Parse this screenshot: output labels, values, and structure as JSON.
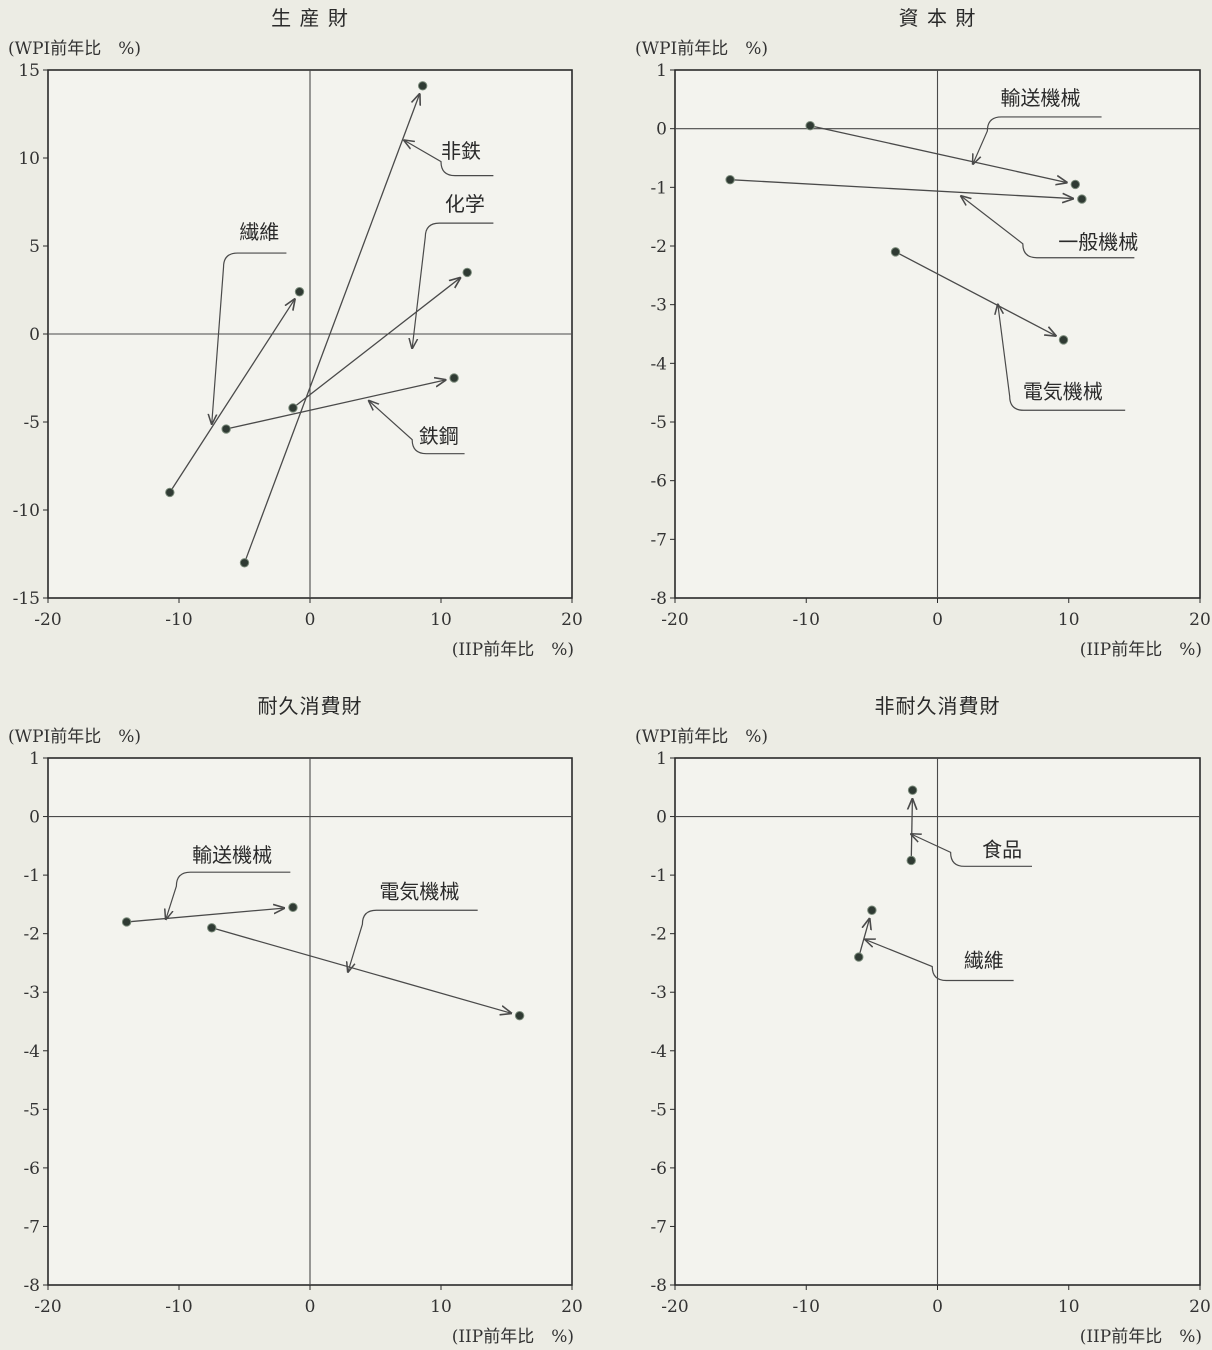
{
  "chart_data": [
    {
      "type": "scatter",
      "title": "生 産 財",
      "ylabel": "(WPI前年比　%)",
      "xlabel": "(IIP前年比　%)",
      "xlim": [
        -20,
        20
      ],
      "ylim": [
        -15,
        15
      ],
      "xticks": [
        "-20",
        "-10",
        "0",
        "10",
        "20"
      ],
      "yticks": [
        "15",
        "10",
        "5",
        "0",
        "-5",
        "-10",
        "-15"
      ],
      "series": [
        {
          "name": "繊維",
          "from": [
            -10.7,
            -9.0
          ],
          "to": [
            -0.8,
            2.4
          ]
        },
        {
          "name": "非鉄",
          "from": [
            -5.0,
            -13.0
          ],
          "to": [
            8.6,
            14.1
          ]
        },
        {
          "name": "化学",
          "from": [
            -1.3,
            -4.2
          ],
          "to": [
            12.0,
            3.5
          ]
        },
        {
          "name": "鉄鋼",
          "from": [
            -6.4,
            -5.4
          ],
          "to": [
            11.0,
            -2.5
          ]
        }
      ]
    },
    {
      "type": "scatter",
      "title": "資 本 財",
      "ylabel": "(WPI前年比　%)",
      "xlabel": "(IIP前年比　%)",
      "xlim": [
        -20,
        20
      ],
      "ylim": [
        -8,
        1
      ],
      "xticks": [
        "-20",
        "-10",
        "0",
        "10",
        "20"
      ],
      "yticks": [
        "1",
        "0",
        "-1",
        "-2",
        "-3",
        "-4",
        "-5",
        "-6",
        "-7",
        "-8"
      ],
      "series": [
        {
          "name": "輸送機械",
          "from": [
            -9.7,
            0.05
          ],
          "to": [
            10.5,
            -0.95
          ]
        },
        {
          "name": "一般機械",
          "from": [
            -15.8,
            -0.87
          ],
          "to": [
            11.0,
            -1.2
          ]
        },
        {
          "name": "電気機械",
          "from": [
            -3.2,
            -2.1
          ],
          "to": [
            9.6,
            -3.6
          ]
        }
      ]
    },
    {
      "type": "scatter",
      "title": "耐久消費財",
      "ylabel": "(WPI前年比　%)",
      "xlabel": "(IIP前年比　%)",
      "xlim": [
        -20,
        20
      ],
      "ylim": [
        -8,
        1
      ],
      "xticks": [
        "-20",
        "-10",
        "0",
        "10",
        "20"
      ],
      "yticks": [
        "1",
        "0",
        "-1",
        "-2",
        "-3",
        "-4",
        "-5",
        "-6",
        "-7",
        "-8"
      ],
      "series": [
        {
          "name": "輸送機械",
          "from": [
            -14.0,
            -1.8
          ],
          "to": [
            -1.3,
            -1.55
          ]
        },
        {
          "name": "電気機械",
          "from": [
            -7.5,
            -1.9
          ],
          "to": [
            16.0,
            -3.4
          ]
        }
      ]
    },
    {
      "type": "scatter",
      "title": "非耐久消費財",
      "ylabel": "(WPI前年比　%)",
      "xlabel": "(IIP前年比　%)",
      "xlim": [
        -20,
        20
      ],
      "ylim": [
        -8,
        1
      ],
      "xticks": [
        "-20",
        "-10",
        "0",
        "10",
        "20"
      ],
      "yticks": [
        "1",
        "0",
        "-1",
        "-2",
        "-3",
        "-4",
        "-5",
        "-6",
        "-7",
        "-8"
      ],
      "series": [
        {
          "name": "食品",
          "from": [
            -2.0,
            -0.75
          ],
          "to": [
            -1.9,
            0.45
          ]
        },
        {
          "name": "繊維",
          "from": [
            -6.0,
            -2.4
          ],
          "to": [
            -5.0,
            -1.6
          ]
        }
      ]
    }
  ]
}
